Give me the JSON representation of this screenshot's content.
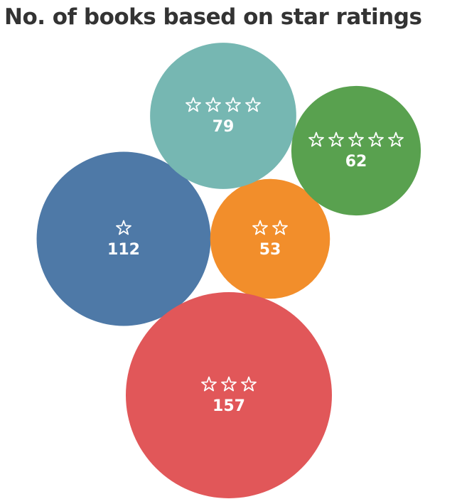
{
  "chart_data": {
    "type": "bubble",
    "title": "No. of books based on star ratings",
    "categories": [
      "☆",
      "☆☆",
      "☆☆☆",
      "☆☆☆☆",
      "☆☆☆☆☆"
    ],
    "values": [
      112,
      53,
      157,
      79,
      62
    ],
    "stars": [
      1,
      2,
      3,
      4,
      5
    ],
    "colors": [
      "#4e79a7",
      "#f28e2b",
      "#e15759",
      "#76b7b2",
      "#59a14f"
    ],
    "legend": "none",
    "grid": false
  }
}
